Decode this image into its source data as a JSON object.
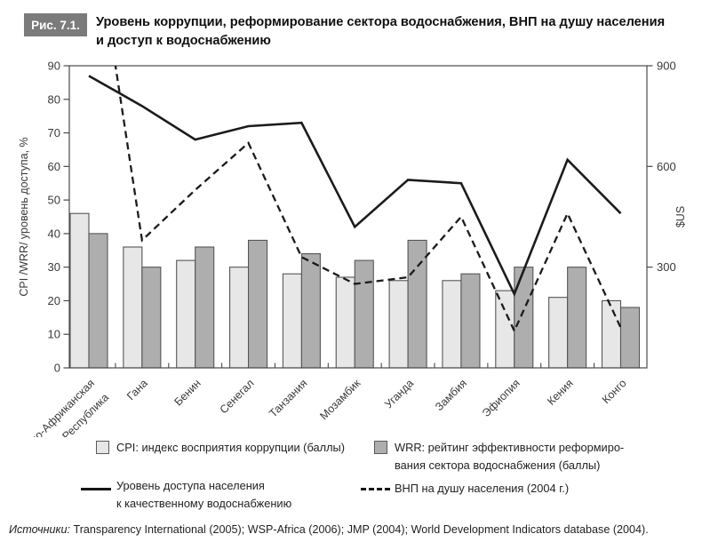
{
  "figure": {
    "label": "Рис. 7.1.",
    "title_line1": "Уровень коррупции, реформирование сектора водоснабжения, ВНП на душу населения",
    "title_line2": "и доступ к водоснабжению"
  },
  "legend": {
    "cpi_label": "CPI: индекс восприятия коррупции (баллы)",
    "wrr_line1": "WRR: рейтинг эффективности реформиро-",
    "wrr_line2": "вания сектора водоснабжения (баллы)",
    "access_line1": "Уровень доступа населения",
    "access_line2": "к качественному водоснабжению",
    "gnp_label": "ВНП на душу населения (2004 г.)"
  },
  "source": {
    "prefix": "Источники:",
    "text": " Transparency International (2005); WSP-Africa (2006); JMP (2004); World Development Indicators database (2004)."
  },
  "colors": {
    "cpi_bar": "#e7e7e7",
    "wrr_bar": "#aeaeae",
    "bar_border": "#565656",
    "line": "#1b1b1b",
    "axis": "#4a4a4a",
    "tick_text": "#3a3a3a"
  },
  "chart_data": {
    "type": "bar",
    "subtype": "grouped bars + two overlay lines",
    "categories": [
      "Южно-Африканская\nРеспублика",
      "Гана",
      "Бенин",
      "Сенегал",
      "Танзания",
      "Мозамбик",
      "Уганда",
      "Замбия",
      "Эфиопия",
      "Кения",
      "Конго"
    ],
    "series": [
      {
        "name": "CPI: индекс восприятия коррупции (баллы)",
        "type": "bar",
        "axis": "left",
        "values": [
          46,
          36,
          32,
          30,
          28,
          27,
          26,
          26,
          23,
          21,
          20
        ]
      },
      {
        "name": "WRR: рейтинг эффективности реформирования сектора водоснабжения (баллы)",
        "type": "bar",
        "axis": "left",
        "values": [
          40,
          30,
          36,
          38,
          34,
          32,
          38,
          28,
          30,
          30,
          18
        ]
      },
      {
        "name": "Уровень доступа населения к качественному водоснабжению",
        "type": "line",
        "style": "solid",
        "axis": "left",
        "values": [
          87,
          78,
          68,
          72,
          73,
          42,
          56,
          55,
          22,
          62,
          46
        ]
      },
      {
        "name": "ВНП на душу населения (2004 г.)",
        "type": "line",
        "style": "dashed",
        "axis": "right",
        "values": [
          null,
          380,
          530,
          670,
          330,
          250,
          270,
          450,
          110,
          460,
          120
        ],
        "offscale_note": "первая точка (Южно-Африканская Республика) выше верхней границы шкалы (>900 $US)",
        "offscale_anchor_right": 1420
      }
    ],
    "left_axis": {
      "label": "CPI /WRR/ уровень доступа, %",
      "min": 0,
      "max": 90,
      "tick_step": 10,
      "ticks": [
        0,
        10,
        20,
        30,
        40,
        50,
        60,
        70,
        80,
        90
      ]
    },
    "right_axis": {
      "label": "$US",
      "min": 0,
      "max": 900,
      "ticks": [
        300,
        600,
        900
      ]
    },
    "grid": false,
    "frame": true,
    "legend_position": "below"
  }
}
